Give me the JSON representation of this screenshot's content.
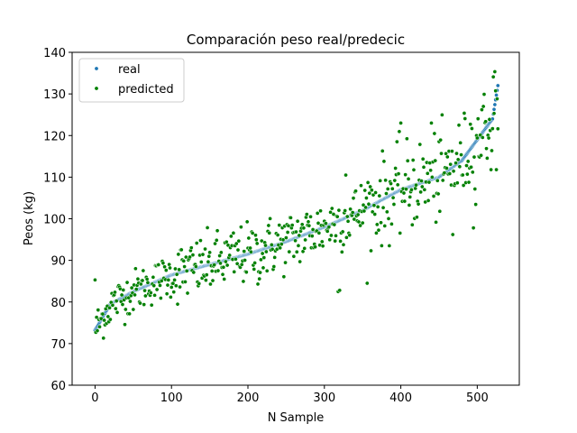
{
  "chart_data": {
    "type": "scatter",
    "title": "Comparación peso real/predecic",
    "xlabel": "N Sample",
    "ylabel": "Peos (kg)",
    "xlim": [
      -30,
      555
    ],
    "ylim": [
      60,
      140
    ],
    "xticks": [
      0,
      100,
      200,
      300,
      400,
      500
    ],
    "yticks": [
      60,
      70,
      80,
      90,
      100,
      110,
      120,
      130,
      140
    ],
    "legend_position": "upper-left",
    "grid": false,
    "n_points": 528,
    "series": [
      {
        "name": "real",
        "color": "#1f77b4",
        "description": "sorted ascending",
        "y_at_x": [
          {
            "x": 0,
            "y": 73.2
          },
          {
            "x": 20,
            "y": 79.5
          },
          {
            "x": 50,
            "y": 82.5
          },
          {
            "x": 100,
            "y": 86.5
          },
          {
            "x": 150,
            "y": 89.0
          },
          {
            "x": 200,
            "y": 91.5
          },
          {
            "x": 250,
            "y": 94.5
          },
          {
            "x": 300,
            "y": 98.0
          },
          {
            "x": 350,
            "y": 102.0
          },
          {
            "x": 400,
            "y": 107.0
          },
          {
            "x": 450,
            "y": 110.0
          },
          {
            "x": 480,
            "y": 114.0
          },
          {
            "x": 500,
            "y": 119.0
          },
          {
            "x": 520,
            "y": 124.0
          },
          {
            "x": 527,
            "y": 132.0
          }
        ]
      },
      {
        "name": "predicted",
        "color": "#008000",
        "description": "scattered around real curve",
        "notable_points": [
          {
            "x": 0,
            "y": 85.3
          },
          {
            "x": 20,
            "y": 75.8
          },
          {
            "x": 213,
            "y": 84.3
          },
          {
            "x": 318,
            "y": 82.5
          },
          {
            "x": 320,
            "y": 82.8
          },
          {
            "x": 328,
            "y": 110.5
          },
          {
            "x": 400,
            "y": 123.0
          },
          {
            "x": 440,
            "y": 123.0
          },
          {
            "x": 468,
            "y": 96.2
          },
          {
            "x": 495,
            "y": 97.8
          },
          {
            "x": 508,
            "y": 127.0
          },
          {
            "x": 518,
            "y": 111.8
          },
          {
            "x": 525,
            "y": 111.8
          }
        ]
      }
    ]
  }
}
